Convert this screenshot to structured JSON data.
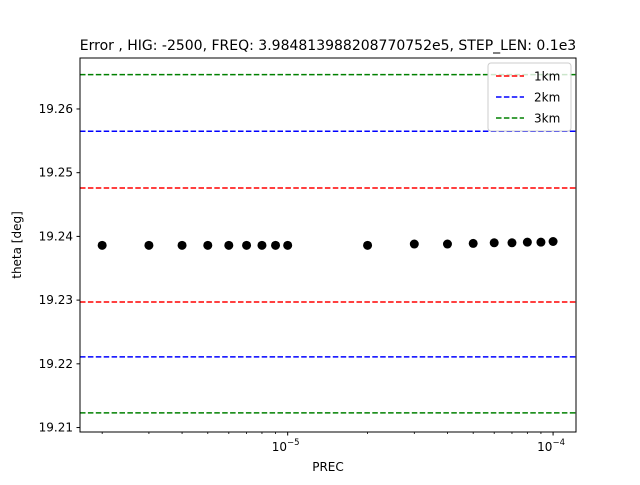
{
  "chart_data": {
    "type": "scatter",
    "title": "Error , HIG: -2500, FREQ: 3.984813988208770752e5, STEP_LEN: 0.1e3",
    "xlabel": "PREC",
    "ylabel": "theta [deg]",
    "xscale": "log",
    "xlim": [
      1.65e-06,
      0.000122
    ],
    "ylim": [
      19.2093,
      19.268
    ],
    "grid": false,
    "legend_placement": "top-right",
    "x_ticks": [
      {
        "value": 1e-05,
        "base": "10",
        "exp": "−5"
      },
      {
        "value": 0.0001,
        "base": "10",
        "exp": "−4"
      }
    ],
    "y_ticks": [
      19.21,
      19.22,
      19.23,
      19.24,
      19.25,
      19.26
    ],
    "series": [
      {
        "kind": "points",
        "color": "#000000",
        "x": [
          2e-06,
          3e-06,
          4e-06,
          5e-06,
          6e-06,
          7e-06,
          8e-06,
          9e-06,
          1e-05,
          2e-05,
          3e-05,
          4e-05,
          5e-05,
          6e-05,
          7e-05,
          8e-05,
          9e-05,
          0.0001
        ],
        "y": [
          19.2386,
          19.2386,
          19.2386,
          19.2386,
          19.2386,
          19.2386,
          19.2386,
          19.2386,
          19.2386,
          19.2386,
          19.2388,
          19.2388,
          19.2389,
          19.239,
          19.239,
          19.2391,
          19.2391,
          19.2392
        ]
      },
      {
        "kind": "hline",
        "name": "1km",
        "color": "#ff0000",
        "y": [
          19.2476,
          19.2297
        ]
      },
      {
        "kind": "hline",
        "name": "2km",
        "color": "#0000ff",
        "y": [
          19.2565,
          19.2211
        ]
      },
      {
        "kind": "hline",
        "name": "3km",
        "color": "#008000",
        "y": [
          19.2654,
          19.2123
        ]
      }
    ]
  }
}
